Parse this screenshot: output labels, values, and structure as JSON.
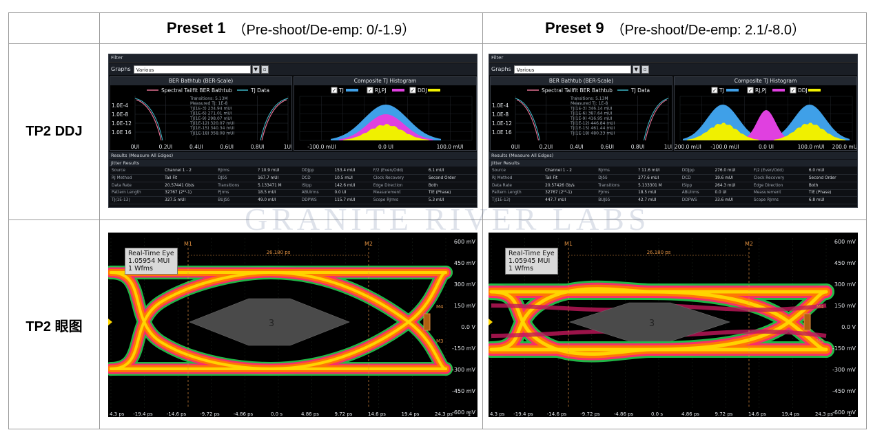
{
  "headers": {
    "col1": {
      "bold": "Preset 1",
      "rest": "（Pre-shoot/De-emp: 0/-1.9）"
    },
    "col2": {
      "bold": "Preset 9",
      "rest": "（Pre-shoot/De-emp: 2.1/-8.0）"
    }
  },
  "rows": {
    "ddj": "TP2 DDJ",
    "eye": "TP2 眼图"
  },
  "watermark": "GRANITE RIVER LABS",
  "ber": {
    "filter_label": "Filter",
    "graphs_label": "Graphs",
    "graphs_value": "Various",
    "bathtub_title": "BER Bathtub (BER-Scale)",
    "legend_spectral": "Spectral Tailfit BER Bathtub",
    "legend_tj": "TJ Data",
    "histo_title": "Composite TJ Histogram",
    "histo_legend": [
      "TJ",
      "RJ,PJ",
      "DDJ"
    ],
    "y_ticks": [
      "1.0E-4",
      "1.0E-8",
      "1.0E-12",
      "1.0E 16"
    ],
    "x_ticks": [
      "0UI",
      "0.2UI",
      "0.4UI",
      "0.6UI",
      "0.8UI",
      "1UI"
    ],
    "results_label": "Results  (Measure All Edges)",
    "jitter_label": "Jitter Results"
  },
  "preset1": {
    "bathtub_annot": [
      "Transitions: 5.13M",
      "Measured TJ: 1E-8",
      "TJ(1E-3) 234.94 mUI",
      "TJ(1E-6) 271.01 mUI",
      "TJ(1E-9) 298.07 mUI",
      "TJ(1E-12) 320.07 mUI",
      "TJ(1E-15) 340.34 mUI",
      "TJ(1E-18) 358.08 mUI"
    ],
    "histo_x": [
      "-100.0 mUI",
      "0.0 UI",
      "100.0 mUI"
    ],
    "results": [
      [
        "Source",
        "Channel 1 - 2",
        "RJrms",
        "? 10.9 mUI",
        "DDJpp",
        "153.4 mUI",
        "F/2 (Even/Odd)",
        "6.1 mUI"
      ],
      [
        "RJ Method",
        "Tail Fit",
        "DJδδ",
        "167.7 mUI",
        "DCD",
        "10.5 mUI",
        "Clock Recovery",
        "Second Order"
      ],
      [
        "Data Rate",
        "20.57441 Gb/s",
        "Transitions",
        "5.133471 M",
        "ISIpp",
        "142.6 mUI",
        "Edge Direction",
        "Both"
      ],
      [
        "Pattern Length",
        "32767 (2¹⁵-1)",
        "PJrms",
        "18.5 mUI",
        "ABUIrms",
        "0.0 UI",
        "Measurement",
        "TIE (Phase)"
      ],
      [
        "TJ(1E-13)",
        "327.5 mUI",
        "BUJδδ",
        "49.0 mUI",
        "DDPWS",
        "115.7 mUI",
        "Scope RJrms",
        "5.3 mUI"
      ]
    ],
    "eye_title": "Real-Time Eye",
    "eye_mui": "1.05954 MUI",
    "eye_wfms": "1 Wfms",
    "eye_delta": "26.180 ps",
    "eye_y": [
      "600 mV",
      "450 mV",
      "300 mV",
      "150 mV",
      "0.0 V",
      "-150 mV",
      "-300 mV",
      "-450 mV",
      "-600 mV"
    ],
    "eye_x": [
      "4.3 ps",
      "-19.4 ps",
      "-14.6 ps",
      "-9.72 ps",
      "-4.86 ps",
      "0.0 s",
      "4.86 ps",
      "9.72 ps",
      "14.6 ps",
      "19.4 ps",
      "24.3 ps",
      "1"
    ]
  },
  "preset9": {
    "bathtub_annot": [
      "Transitions: 5.13M",
      "Measured TJ: 1E-8",
      "TJ(1E-3) 346.14 mUI",
      "TJ(1E-6) 387.64 mUI",
      "TJ(1E-9) 416.95 mUI",
      "TJ(1E-12) 446.84 mUI",
      "TJ(1E-15) 461.44 mUI",
      "TJ(1E-18) 480.33 mUI"
    ],
    "histo_x": [
      "-200.0 mUI",
      "-100.0 mUI",
      "0.0 UI",
      "100.0 mUI",
      "200.0 mUI"
    ],
    "results": [
      [
        "Source",
        "Channel 1 - 2",
        "RJrms",
        "? 11.6 mUI",
        "DDJpp",
        "276.0 mUI",
        "F/2 (Even/Odd)",
        "6.0 mUI"
      ],
      [
        "RJ Method",
        "Tail Fit",
        "DJδδ",
        "277.6 mUI",
        "DCD",
        "19.6 mUI",
        "Clock Recovery",
        "Second Order"
      ],
      [
        "Data Rate",
        "20.57426 Gb/s",
        "Transitions",
        "5.133301 M",
        "ISIpp",
        "264.3 mUI",
        "Edge Direction",
        "Both"
      ],
      [
        "Pattern Length",
        "32767 (2¹⁵-1)",
        "PJrms",
        "18.5 mUI",
        "ABUIrms",
        "0.0 UI",
        "Measurement",
        "TIE (Phase)"
      ],
      [
        "TJ(1E-13)",
        "447.7 mUI",
        "BUJδδ",
        "42.7 mUI",
        "DDPWS",
        "33.6 mUI",
        "Scope RJrms",
        "6.8 mUI"
      ]
    ],
    "eye_title": "Real-Time Eye",
    "eye_mui": "1.05945 MUI",
    "eye_wfms": "1 Wfms",
    "eye_delta": "26.180 ps",
    "eye_y": [
      "600 mV",
      "450 mV",
      "300 mV",
      "150 mV",
      "0.0 V",
      "-150 mV",
      "-300 mV",
      "-450 mV",
      "-600 mV"
    ],
    "eye_x": [
      "4.3 ps",
      "-19.4 ps",
      "-14.6 ps",
      "-9.72 ps",
      "-4.86 ps",
      "0.0 s",
      "4.86 ps",
      "9.72 ps",
      "14.6 ps",
      "19.4 ps",
      "24.3 ps",
      "1"
    ]
  },
  "markers": {
    "m1": "M1",
    "m2": "M2",
    "m3": "M3",
    "m4": "M4",
    "center": "3"
  },
  "colors": {
    "eye_hot": "#ffd800",
    "eye_mid": "#ff7a00",
    "eye_edge": "#ff2a6a",
    "eye_outer": "#22c04a",
    "tj": "#3fa0e8",
    "rjpj": "#e040e0",
    "ddj": "#f0f000"
  }
}
